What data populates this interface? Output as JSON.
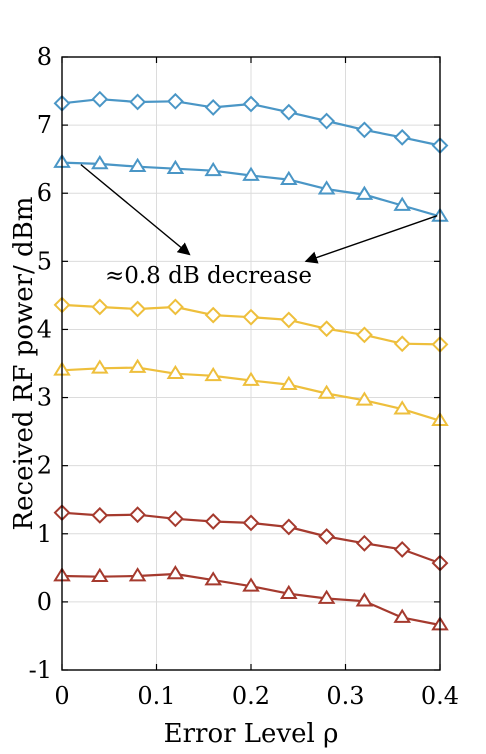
{
  "chart_data": {
    "type": "line",
    "xlabel": "Error Level ρ",
    "ylabel": "Received RF power/ dBm",
    "xlim": [
      0,
      0.4
    ],
    "ylim": [
      -1,
      8
    ],
    "xticks": [
      0,
      0.1,
      0.2,
      0.3,
      0.4
    ],
    "xtick_labels": [
      "0",
      "0.1",
      "0.2",
      "0.3",
      "0.4"
    ],
    "yticks": [
      -1,
      0,
      1,
      2,
      3,
      4,
      5,
      6,
      7,
      8
    ],
    "ytick_labels": [
      "-1",
      "0",
      "1",
      "2",
      "3",
      "4",
      "5",
      "6",
      "7",
      "8"
    ],
    "grid": true,
    "x": [
      0,
      0.04,
      0.08,
      0.12,
      0.16,
      0.2,
      0.24,
      0.28,
      0.32,
      0.36,
      0.4
    ],
    "series": [
      {
        "color": "#4a96c6",
        "marker": "diamond",
        "values": [
          7.32,
          7.38,
          7.34,
          7.35,
          7.26,
          7.31,
          7.19,
          7.06,
          6.93,
          6.82,
          6.7
        ]
      },
      {
        "color": "#4a96c6",
        "marker": "triangle",
        "values": [
          6.45,
          6.43,
          6.39,
          6.36,
          6.33,
          6.26,
          6.2,
          6.06,
          5.98,
          5.82,
          5.66
        ]
      },
      {
        "color": "#eebf3c",
        "marker": "diamond",
        "values": [
          4.36,
          4.33,
          4.3,
          4.33,
          4.21,
          4.18,
          4.14,
          4.01,
          3.92,
          3.79,
          3.78
        ]
      },
      {
        "color": "#eebf3c",
        "marker": "triangle",
        "values": [
          3.4,
          3.43,
          3.44,
          3.35,
          3.32,
          3.25,
          3.19,
          3.06,
          2.96,
          2.83,
          2.66
        ]
      },
      {
        "color": "#a53a2e",
        "marker": "diamond",
        "values": [
          1.31,
          1.27,
          1.28,
          1.22,
          1.18,
          1.16,
          1.1,
          0.96,
          0.86,
          0.77,
          0.57
        ]
      },
      {
        "color": "#a53a2e",
        "marker": "triangle",
        "values": [
          0.38,
          0.37,
          0.38,
          0.41,
          0.32,
          0.23,
          0.12,
          0.05,
          0.01,
          -0.23,
          -0.34
        ]
      }
    ],
    "annotation": {
      "text": "≈0.8 dB decrease",
      "anchor": [
        0.155,
        4.68
      ],
      "arrows": [
        {
          "from": [
            0.02,
            6.42
          ],
          "to": [
            0.135,
            5.1
          ]
        },
        {
          "from": [
            0.397,
            5.67
          ],
          "to": [
            0.258,
            5.0
          ]
        }
      ]
    }
  }
}
